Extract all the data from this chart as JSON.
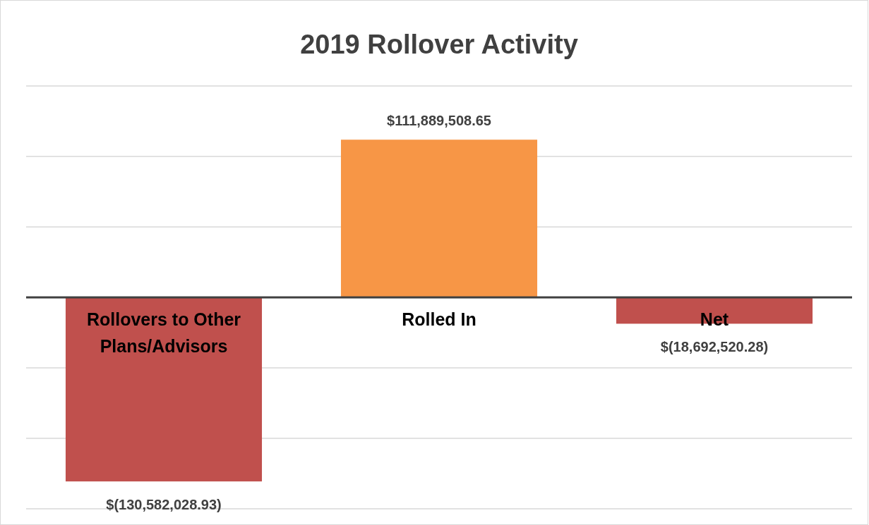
{
  "chart_data": {
    "type": "bar",
    "title": "2019 Rollover Activity",
    "categories": [
      "Rollovers to Other Plans/Advisors",
      "Rolled In",
      "Net"
    ],
    "values": [
      -130582028.93,
      111889508.65,
      -18692520.28
    ],
    "colors": [
      "#c0504d",
      "#f79646",
      "#c0504d"
    ],
    "value_labels": [
      "$(130,582,028.93)",
      "$111,889,508.65",
      "$(18,692,520.28)"
    ],
    "ylim": [
      -150000000,
      150000000
    ],
    "yticks": [
      {
        "value": -150000000,
        "label": null
      },
      {
        "value": -100000000,
        "label": null
      },
      {
        "value": -50000000,
        "label": null
      },
      {
        "value": 0,
        "label": null
      },
      {
        "value": 50000000,
        "label": null
      },
      {
        "value": 100000000,
        "label": null
      },
      {
        "value": 150000000,
        "label": null
      }
    ],
    "grid": "y",
    "tick_labels": "x"
  }
}
